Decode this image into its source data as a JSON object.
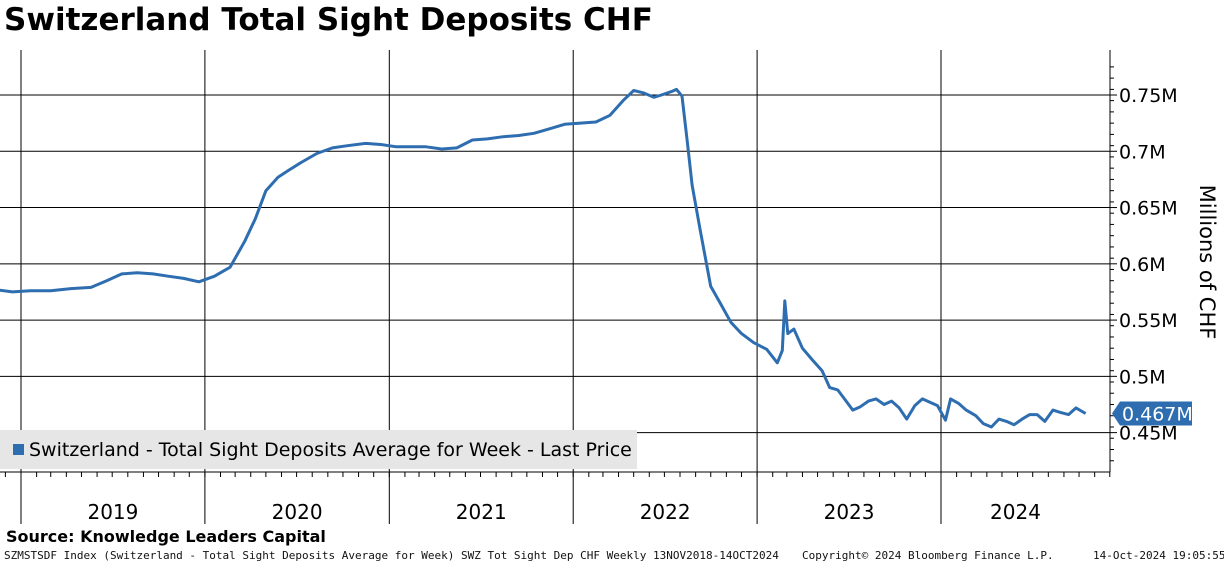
{
  "chart_data": {
    "type": "line",
    "title": "Switzerland Total Sight Deposits CHF",
    "ylabel": "Millions of CHF",
    "ylim": [
      0.415,
      0.79
    ],
    "y_ticks": [
      {
        "value": 0.45,
        "label": "0.45M"
      },
      {
        "value": 0.5,
        "label": "0.5M"
      },
      {
        "value": 0.55,
        "label": "0.55M"
      },
      {
        "value": 0.6,
        "label": "0.6M"
      },
      {
        "value": 0.65,
        "label": "0.65M"
      },
      {
        "value": 0.7,
        "label": "0.7M"
      },
      {
        "value": 0.75,
        "label": "0.75M"
      }
    ],
    "x_years": [
      "2019",
      "2020",
      "2021",
      "2022",
      "2023",
      "2024"
    ],
    "grid": true,
    "legend_position": "bottom-left",
    "series": [
      {
        "name": "Switzerland - Total Sight Deposits Average for Week - Last Price",
        "color": "#2e6eb0",
        "last_value_label": "0.467M",
        "points": [
          [
            "2018-11-13",
            0.577
          ],
          [
            "2018-12-15",
            0.575
          ],
          [
            "2019-01-20",
            0.576
          ],
          [
            "2019-03-01",
            0.576
          ],
          [
            "2019-04-10",
            0.578
          ],
          [
            "2019-05-20",
            0.579
          ],
          [
            "2019-06-20",
            0.585
          ],
          [
            "2019-07-20",
            0.591
          ],
          [
            "2019-08-20",
            0.592
          ],
          [
            "2019-09-20",
            0.591
          ],
          [
            "2019-10-20",
            0.589
          ],
          [
            "2019-11-20",
            0.587
          ],
          [
            "2019-12-20",
            0.584
          ],
          [
            "2020-01-20",
            0.589
          ],
          [
            "2020-02-20",
            0.597
          ],
          [
            "2020-03-20",
            0.62
          ],
          [
            "2020-04-10",
            0.64
          ],
          [
            "2020-05-01",
            0.665
          ],
          [
            "2020-05-25",
            0.677
          ],
          [
            "2020-06-15",
            0.683
          ],
          [
            "2020-07-10",
            0.69
          ],
          [
            "2020-08-10",
            0.698
          ],
          [
            "2020-09-10",
            0.703
          ],
          [
            "2020-10-10",
            0.705
          ],
          [
            "2020-11-15",
            0.707
          ],
          [
            "2020-12-15",
            0.706
          ],
          [
            "2021-01-15",
            0.704
          ],
          [
            "2021-02-15",
            0.704
          ],
          [
            "2021-03-15",
            0.704
          ],
          [
            "2021-04-15",
            0.702
          ],
          [
            "2021-05-15",
            0.703
          ],
          [
            "2021-06-15",
            0.71
          ],
          [
            "2021-07-15",
            0.711
          ],
          [
            "2021-08-15",
            0.713
          ],
          [
            "2021-09-15",
            0.714
          ],
          [
            "2021-10-15",
            0.716
          ],
          [
            "2021-11-15",
            0.72
          ],
          [
            "2021-12-15",
            0.724
          ],
          [
            "2022-01-15",
            0.725
          ],
          [
            "2022-02-15",
            0.726
          ],
          [
            "2022-03-15",
            0.732
          ],
          [
            "2022-04-10",
            0.745
          ],
          [
            "2022-05-01",
            0.754
          ],
          [
            "2022-05-20",
            0.752
          ],
          [
            "2022-06-10",
            0.748
          ],
          [
            "2022-06-25",
            0.75
          ],
          [
            "2022-07-15",
            0.753
          ],
          [
            "2022-07-25",
            0.755
          ],
          [
            "2022-08-05",
            0.749
          ],
          [
            "2022-08-15",
            0.71
          ],
          [
            "2022-08-25",
            0.67
          ],
          [
            "2022-09-10",
            0.63
          ],
          [
            "2022-10-01",
            0.58
          ],
          [
            "2022-10-20",
            0.565
          ],
          [
            "2022-11-10",
            0.548
          ],
          [
            "2022-12-01",
            0.538
          ],
          [
            "2022-12-25",
            0.53
          ],
          [
            "2023-01-20",
            0.524
          ],
          [
            "2023-02-10",
            0.512
          ],
          [
            "2023-02-20",
            0.523
          ],
          [
            "2023-02-25",
            0.567
          ],
          [
            "2023-03-03",
            0.538
          ],
          [
            "2023-03-15",
            0.542
          ],
          [
            "2023-04-01",
            0.525
          ],
          [
            "2023-04-20",
            0.515
          ],
          [
            "2023-05-10",
            0.505
          ],
          [
            "2023-05-25",
            0.49
          ],
          [
            "2023-06-10",
            0.488
          ],
          [
            "2023-06-25",
            0.479
          ],
          [
            "2023-07-10",
            0.47
          ],
          [
            "2023-07-25",
            0.473
          ],
          [
            "2023-08-10",
            0.478
          ],
          [
            "2023-08-25",
            0.48
          ],
          [
            "2023-09-10",
            0.475
          ],
          [
            "2023-09-25",
            0.478
          ],
          [
            "2023-10-10",
            0.472
          ],
          [
            "2023-10-25",
            0.462
          ],
          [
            "2023-11-10",
            0.474
          ],
          [
            "2023-11-25",
            0.48
          ],
          [
            "2023-12-10",
            0.477
          ],
          [
            "2023-12-25",
            0.474
          ],
          [
            "2024-01-10",
            0.461
          ],
          [
            "2024-01-20",
            0.48
          ],
          [
            "2024-02-05",
            0.476
          ],
          [
            "2024-02-20",
            0.47
          ],
          [
            "2024-03-10",
            0.465
          ],
          [
            "2024-03-25",
            0.458
          ],
          [
            "2024-04-10",
            0.455
          ],
          [
            "2024-04-25",
            0.462
          ],
          [
            "2024-05-10",
            0.46
          ],
          [
            "2024-05-25",
            0.457
          ],
          [
            "2024-06-10",
            0.462
          ],
          [
            "2024-06-25",
            0.466
          ],
          [
            "2024-07-10",
            0.466
          ],
          [
            "2024-07-25",
            0.46
          ],
          [
            "2024-08-10",
            0.47
          ],
          [
            "2024-08-25",
            0.468
          ],
          [
            "2024-09-10",
            0.466
          ],
          [
            "2024-09-25",
            0.472
          ],
          [
            "2024-10-14",
            0.467
          ]
        ]
      }
    ]
  },
  "source_text": "Source: Knowledge Leaders Capital",
  "footer": {
    "left": "SZMSTSDF Index (Switzerland - Total Sight Deposits Average for Week) SWZ Tot Sight Dep CHF  Weekly 13NOV2018-14OCT2024",
    "center": "Copyright© 2024 Bloomberg Finance L.P.",
    "right": "14-Oct-2024 19:05:55"
  }
}
